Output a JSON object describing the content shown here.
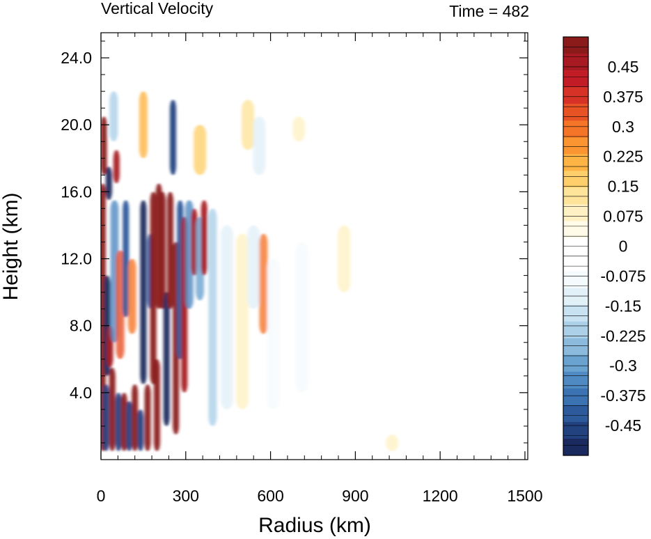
{
  "chart_data": {
    "type": "heatmap",
    "title": "Vertical Velocity",
    "subtitle": "Time = 482",
    "xlabel": "Radius (km)",
    "ylabel": "Height (km)",
    "xlim": [
      0,
      1510
    ],
    "ylim": [
      0,
      25.5
    ],
    "x_ticks": [
      0,
      300,
      600,
      900,
      1200,
      1500
    ],
    "x_tick_labels": [
      "0",
      "300",
      "600",
      "900",
      "1200",
      "1500"
    ],
    "y_ticks": [
      4,
      8,
      12,
      16,
      20,
      24
    ],
    "y_tick_labels": [
      "4.0",
      "8.0",
      "12.0",
      "16.0",
      "20.0",
      "24.0"
    ],
    "colorbar": {
      "levels": [
        -0.525,
        -0.5,
        -0.475,
        -0.45,
        -0.425,
        -0.4,
        -0.375,
        -0.35,
        -0.325,
        -0.3,
        -0.275,
        -0.25,
        -0.225,
        -0.2,
        -0.175,
        -0.15,
        -0.125,
        -0.1,
        -0.075,
        -0.05,
        -0.025,
        0,
        0.025,
        0.05,
        0.075,
        0.1,
        0.125,
        0.15,
        0.175,
        0.2,
        0.225,
        0.25,
        0.275,
        0.3,
        0.325,
        0.35,
        0.375,
        0.4,
        0.425,
        0.45,
        0.475,
        0.5,
        0.525
      ],
      "labels": [
        "0.45",
        "0.375",
        "0.3",
        "0.225",
        "0.15",
        "0.075",
        "0",
        "-0.075",
        "-0.15",
        "-0.225",
        "-0.3",
        "-0.375",
        "-0.45"
      ],
      "label_values": [
        0.45,
        0.375,
        0.3,
        0.225,
        0.15,
        0.075,
        0,
        -0.075,
        -0.15,
        -0.225,
        -0.3,
        -0.375,
        -0.45
      ],
      "colors": [
        "#1b2a5e",
        "#22427f",
        "#2d5a9b",
        "#3a72b2",
        "#4f8ac2",
        "#6aa2d0",
        "#8bbadd",
        "#abd0e8",
        "#c9e2f1",
        "#e2f0f8",
        "#f5fafd",
        "#ffffff",
        "#ffffff",
        "#fffbe8",
        "#fff1c4",
        "#fee39a",
        "#fecf6b",
        "#fdb445",
        "#fb9532",
        "#f57528",
        "#e85326",
        "#d63226",
        "#c21d26",
        "#a81a22",
        "#8b1a1a"
      ]
    },
    "features": [
      {
        "r": 6,
        "z0": 0.5,
        "z1": 16.5,
        "w": 0.55
      },
      {
        "r": 10,
        "z0": 17.0,
        "z1": 20.5,
        "w": 0.5
      },
      {
        "r": 18,
        "z0": 0.5,
        "z1": 4.5,
        "w": -0.45
      },
      {
        "r": 22,
        "z0": 5.0,
        "z1": 11.0,
        "w": -0.5
      },
      {
        "r": 28,
        "z0": 15.5,
        "z1": 17.5,
        "w": -0.5
      },
      {
        "r": 32,
        "z0": 5.5,
        "z1": 8.0,
        "w": 0.45
      },
      {
        "r": 40,
        "z0": 0.5,
        "z1": 5.5,
        "w": 0.5
      },
      {
        "r": 48,
        "z0": 7.0,
        "z1": 15.5,
        "w": -0.35
      },
      {
        "r": 55,
        "z0": 16.5,
        "z1": 18.5,
        "w": 0.45
      },
      {
        "r": 62,
        "z0": 0.5,
        "z1": 4.0,
        "w": -0.45
      },
      {
        "r": 68,
        "z0": 6.0,
        "z1": 12.5,
        "w": 0.35
      },
      {
        "r": 82,
        "z0": 0.5,
        "z1": 4.0,
        "w": 0.5
      },
      {
        "r": 88,
        "z0": 8.5,
        "z1": 15.5,
        "w": -0.4
      },
      {
        "r": 100,
        "z0": 0.5,
        "z1": 3.5,
        "w": -0.45
      },
      {
        "r": 110,
        "z0": 7.5,
        "z1": 12.0,
        "w": 0.3
      },
      {
        "r": 120,
        "z0": 0.5,
        "z1": 4.5,
        "w": 0.5
      },
      {
        "r": 140,
        "z0": 0.5,
        "z1": 3.0,
        "w": -0.45
      },
      {
        "r": 150,
        "z0": 4.5,
        "z1": 15.5,
        "w": -0.5
      },
      {
        "r": 165,
        "z0": 0.5,
        "z1": 4.5,
        "w": 0.5
      },
      {
        "r": 175,
        "z0": 9.0,
        "z1": 13.5,
        "w": -0.4
      },
      {
        "r": 185,
        "z0": 4.5,
        "z1": 16.0,
        "w": 0.55
      },
      {
        "r": 198,
        "z0": 0.5,
        "z1": 6.0,
        "w": 0.5
      },
      {
        "r": 205,
        "z0": 9.0,
        "z1": 16.5,
        "w": 0.55
      },
      {
        "r": 218,
        "z0": 9.0,
        "z1": 16.0,
        "w": 0.55
      },
      {
        "r": 232,
        "z0": 2.0,
        "z1": 10.0,
        "w": -0.5
      },
      {
        "r": 245,
        "z0": 9.0,
        "z1": 16.0,
        "w": 0.55
      },
      {
        "r": 255,
        "z0": 17.0,
        "z1": 21.5,
        "w": -0.45
      },
      {
        "r": 265,
        "z0": 1.5,
        "z1": 13.0,
        "w": 0.55
      },
      {
        "r": 280,
        "z0": 6.0,
        "z1": 15.5,
        "w": -0.4
      },
      {
        "r": 295,
        "z0": 4.0,
        "z1": 14.5,
        "w": 0.45
      },
      {
        "r": 312,
        "z0": 9.0,
        "z1": 15.5,
        "w": -0.35
      },
      {
        "r": 330,
        "z0": 11.0,
        "z1": 15.0,
        "w": 0.45
      },
      {
        "r": 350,
        "z0": 9.5,
        "z1": 14.5,
        "w": -0.3
      },
      {
        "r": 365,
        "z0": 11.0,
        "z1": 15.5,
        "w": 0.45
      },
      {
        "r": 395,
        "z0": 2.0,
        "z1": 15.0,
        "w": -0.2
      },
      {
        "r": 445,
        "z0": 3.0,
        "z1": 14.0,
        "w": -0.12
      },
      {
        "r": 500,
        "z0": 3.0,
        "z1": 13.5,
        "w": 0.1
      },
      {
        "r": 540,
        "z0": 9.0,
        "z1": 14.0,
        "w": -0.12
      },
      {
        "r": 575,
        "z0": 7.5,
        "z1": 13.5,
        "w": 0.3
      },
      {
        "r": 610,
        "z0": 3.0,
        "z1": 12.0,
        "w": -0.08
      },
      {
        "r": 710,
        "z0": 4.0,
        "z1": 13.0,
        "w": -0.08
      },
      {
        "r": 860,
        "z0": 10.0,
        "z1": 14.0,
        "w": 0.08
      },
      {
        "r": 1030,
        "z0": 0.5,
        "z1": 1.5,
        "w": 0.08
      },
      {
        "r": 45,
        "z0": 19.0,
        "z1": 22.0,
        "w": -0.2
      },
      {
        "r": 150,
        "z0": 18.0,
        "z1": 22.0,
        "w": 0.2
      },
      {
        "r": 350,
        "z0": 17.0,
        "z1": 20.0,
        "w": 0.15
      },
      {
        "r": 520,
        "z0": 18.5,
        "z1": 21.5,
        "w": 0.12
      },
      {
        "r": 560,
        "z0": 17.0,
        "z1": 20.5,
        "w": -0.12
      },
      {
        "r": 700,
        "z0": 19.0,
        "z1": 20.5,
        "w": 0.1
      }
    ]
  }
}
